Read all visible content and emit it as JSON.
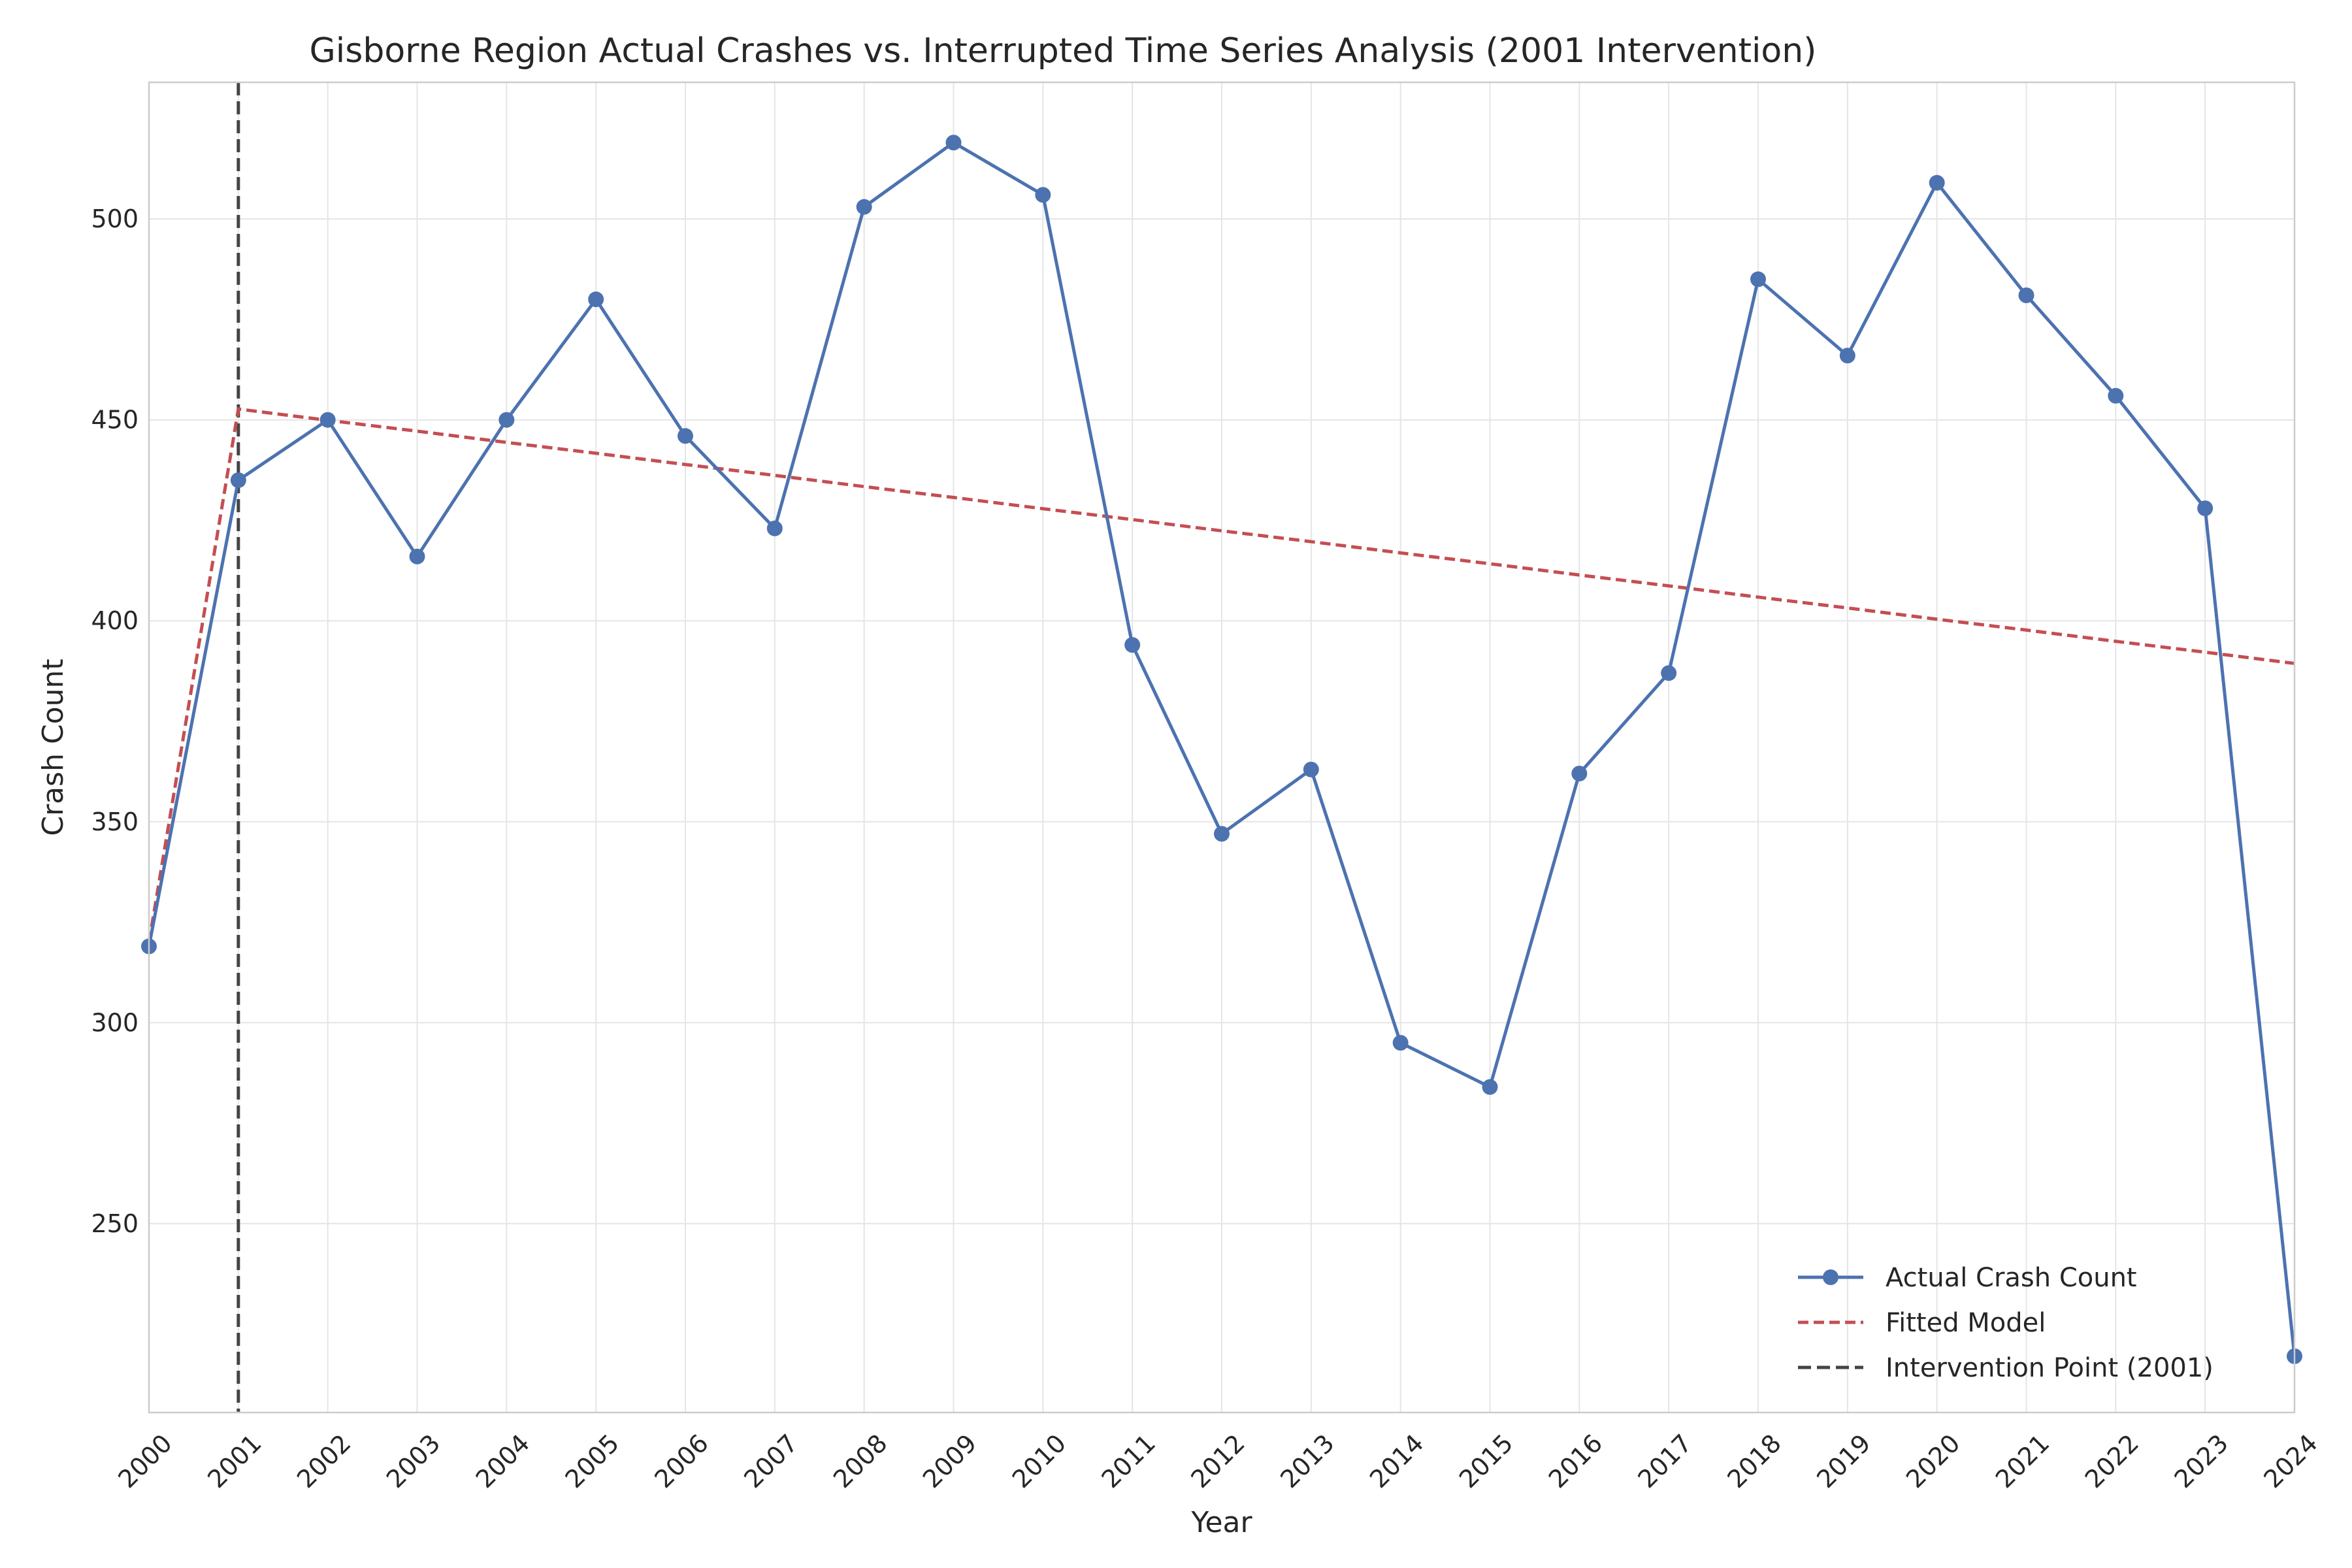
{
  "chart_data": {
    "type": "line",
    "title": "Gisborne Region Actual Crashes vs. Interrupted Time Series Analysis (2001 Intervention)",
    "xlabel": "Year",
    "ylabel": "Crash Count",
    "x": [
      2000,
      2001,
      2002,
      2003,
      2004,
      2005,
      2006,
      2007,
      2008,
      2009,
      2010,
      2011,
      2012,
      2013,
      2014,
      2015,
      2016,
      2017,
      2018,
      2019,
      2020,
      2021,
      2022,
      2023,
      2024
    ],
    "xlim": [
      2000,
      2024
    ],
    "ylim": [
      203,
      534
    ],
    "yticks": [
      250,
      300,
      350,
      400,
      450,
      500
    ],
    "grid": true,
    "legend_position": "bottom-right",
    "series": [
      {
        "name": "Actual Crash Count",
        "style": "solid line with circle markers",
        "color": "#4c72b0",
        "values": [
          319,
          435,
          450,
          416,
          450,
          480,
          446,
          423,
          503,
          519,
          506,
          394,
          347,
          363,
          295,
          284,
          362,
          387,
          485,
          466,
          509,
          481,
          456,
          428,
          217
        ]
      },
      {
        "name": "Fitted Model",
        "style": "dashed line",
        "color": "#c44e52",
        "values": [
          320,
          452.7,
          449.9,
          447.2,
          444.4,
          441.7,
          438.9,
          436.2,
          433.4,
          430.7,
          427.9,
          425.2,
          422.4,
          419.7,
          416.9,
          414.2,
          411.4,
          408.7,
          405.9,
          403.2,
          400.4,
          397.7,
          394.9,
          392.2,
          389.4
        ]
      }
    ],
    "annotations": [
      {
        "name": "Intervention Point (2001)",
        "type": "vertical-line",
        "x": 2001,
        "style": "dashed",
        "color": "#444444"
      }
    ]
  }
}
